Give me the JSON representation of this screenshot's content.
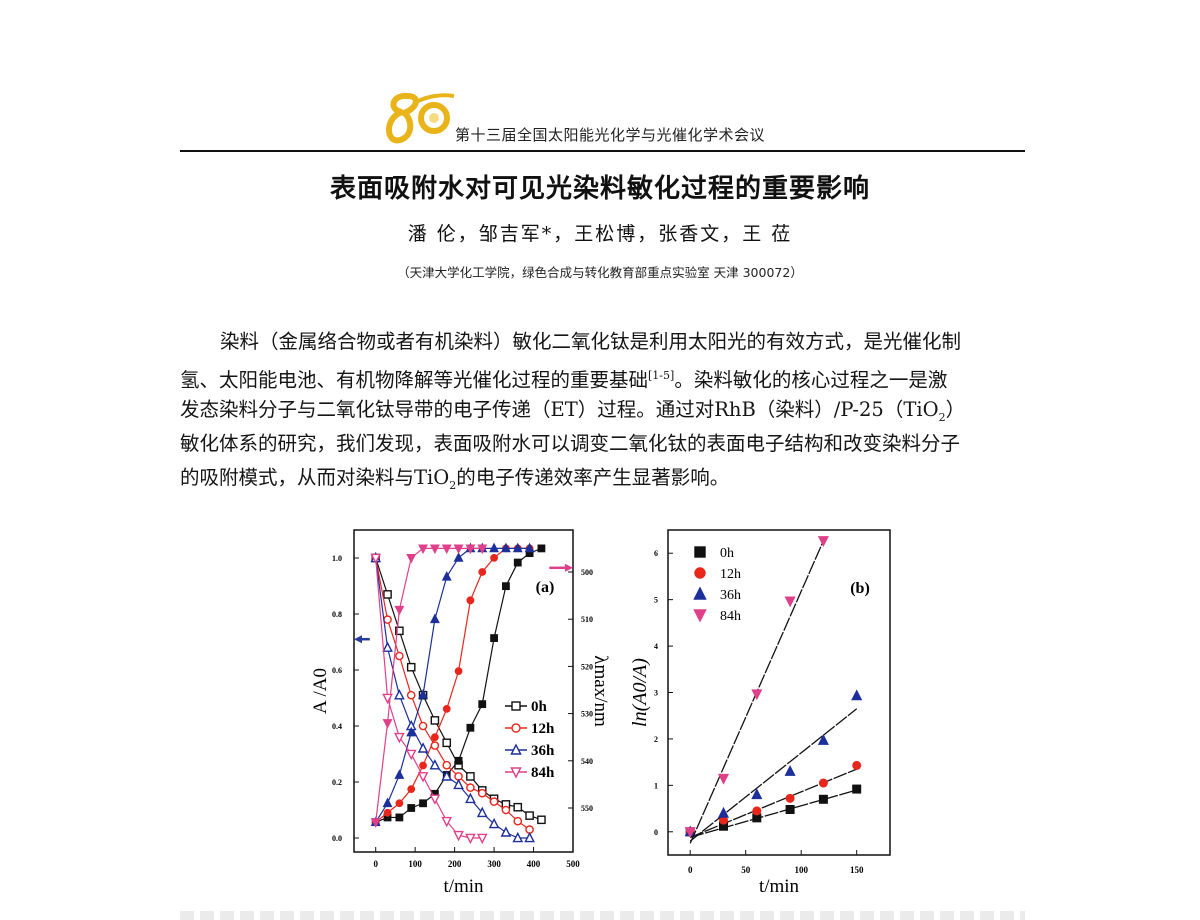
{
  "header": {
    "logo_text": "85",
    "conference": "第十三届全国太阳能光化学与光催化学术会议"
  },
  "title": "表面吸附水对可见光染料敏化过程的重要影响",
  "authors": "潘 伦，邹吉军*，王松博，张香文，王 莅",
  "affiliation": "（天津大学化工学院，绿色合成与转化教育部重点实验室 天津 300072）",
  "paragraph": [
    [
      {
        "t": "染料（金属络合物或者有机染料）敏化二氧化钛是利用太阳光的有效方式，是光催化制"
      }
    ],
    [
      {
        "t": "氢、太阳能电池、有机物降解等光催化过程的重要基础"
      },
      {
        "t": "[1-5]",
        "k": "sup"
      },
      {
        "t": "。染料敏化的核心过程之一是激"
      }
    ],
    [
      {
        "t": "发态染料分子与二氧化钛导带的电子传递（ET）过程。通过对RhB（染料）/P-25（TiO"
      },
      {
        "t": "2",
        "k": "sub"
      },
      {
        "t": "）"
      }
    ],
    [
      {
        "t": "敏化体系的研究，我们发现，表面吸附水可以调变二氧化钛的表面电子结构和改变染料分子"
      }
    ],
    [
      {
        "t": "的吸附模式，从而对染料与TiO"
      },
      {
        "t": "2",
        "k": "sub"
      },
      {
        "t": "的电子传递效率产生显著影响。"
      }
    ]
  ],
  "chart_data": [
    {
      "type": "line",
      "panel_label": "(a)",
      "xlabel": "t/min",
      "ylabel": "A /A0",
      "y2label": "λmax/nm",
      "xlim": [
        -55,
        500
      ],
      "ylim": [
        -0.05,
        1.1
      ],
      "y2lim": [
        500,
        550
      ],
      "y2_inverted": true,
      "xticks": [
        0,
        100,
        200,
        300,
        400,
        500
      ],
      "yticks": [
        "0.0",
        "0.2",
        "0.4",
        "0.6",
        "0.8",
        "1.0"
      ],
      "y2ticks": [
        500,
        510,
        520,
        530,
        540,
        550
      ],
      "legend_position": "right-middle",
      "arrows": [
        {
          "axis": "left",
          "y": 0.71,
          "color": "#2a3a9a"
        },
        {
          "axis": "right",
          "y": 0.965,
          "color": "#e0408a"
        }
      ],
      "series": [
        {
          "name": "0h",
          "color": "#111111",
          "marker": "square",
          "t": [
            0,
            30,
            60,
            90,
            120,
            150,
            180,
            210,
            240,
            270,
            300,
            330,
            360,
            390,
            420
          ],
          "A_A0": [
            1.0,
            0.87,
            0.74,
            0.61,
            0.51,
            0.42,
            0.34,
            0.26,
            0.22,
            0.17,
            0.14,
            0.12,
            0.11,
            0.08,
            0.065
          ],
          "lambda_max": [
            553,
            552,
            552,
            550,
            549,
            547,
            543,
            540,
            533,
            528,
            514,
            503,
            498,
            496,
            495
          ]
        },
        {
          "name": "12h",
          "color": "#e8261c",
          "marker": "circle",
          "t": [
            0,
            30,
            60,
            90,
            120,
            150,
            180,
            210,
            240,
            270,
            300,
            330,
            360,
            390
          ],
          "A_A0": [
            1.0,
            0.78,
            0.65,
            0.51,
            0.4,
            0.33,
            0.26,
            0.22,
            0.18,
            0.16,
            0.13,
            0.1,
            0.06,
            0.03
          ],
          "lambda_max": [
            553,
            551,
            549,
            546,
            541,
            535,
            529,
            521,
            506,
            500,
            497,
            495,
            495,
            495
          ]
        },
        {
          "name": "36h",
          "color": "#1c2f9a",
          "marker": "triangle-up",
          "t": [
            0,
            30,
            60,
            90,
            120,
            150,
            180,
            210,
            240,
            270,
            300,
            330,
            360,
            390
          ],
          "A_A0": [
            1.0,
            0.68,
            0.51,
            0.4,
            0.32,
            0.26,
            0.22,
            0.19,
            0.14,
            0.09,
            0.05,
            0.02,
            0.0,
            0.0
          ],
          "lambda_max": [
            553,
            549,
            543,
            534,
            526,
            510,
            501,
            497,
            495,
            495,
            495,
            495,
            495,
            495
          ]
        },
        {
          "name": "84h",
          "color": "#e0408a",
          "marker": "triangle-down",
          "t": [
            0,
            30,
            60,
            90,
            120,
            150,
            180,
            210,
            240,
            270
          ],
          "A_A0": [
            1.0,
            0.5,
            0.36,
            0.3,
            0.22,
            0.14,
            0.06,
            0.01,
            0.0,
            0.0
          ],
          "lambda_max": [
            553,
            532,
            508,
            497,
            495,
            495,
            495,
            495,
            495,
            495
          ]
        }
      ]
    },
    {
      "type": "scatter",
      "panel_label": "(b)",
      "xlabel": "t/min",
      "ylabel": "ln(A0/A)",
      "xlim": [
        -20,
        180
      ],
      "ylim": [
        -0.5,
        6.5
      ],
      "xticks": [
        0,
        50,
        100,
        150
      ],
      "yticks": [
        0,
        1,
        2,
        3,
        4,
        5,
        6
      ],
      "legend_position": "top-left",
      "series": [
        {
          "name": "0h",
          "color": "#111111",
          "marker": "square",
          "x": [
            0,
            30,
            60,
            90,
            120,
            150
          ],
          "y": [
            0,
            0.12,
            0.3,
            0.48,
            0.7,
            0.92
          ],
          "fit": {
            "slope": 0.0068,
            "intercept": -0.12,
            "x_end": 150
          }
        },
        {
          "name": "12h",
          "color": "#e8261c",
          "marker": "circle",
          "x": [
            0,
            30,
            60,
            90,
            120,
            150
          ],
          "y": [
            0,
            0.25,
            0.45,
            0.72,
            1.05,
            1.43
          ],
          "fit": {
            "slope": 0.0098,
            "intercept": -0.12,
            "x_end": 150
          }
        },
        {
          "name": "36h",
          "color": "#1c2f9a",
          "marker": "triangle-up",
          "x": [
            0,
            30,
            60,
            90,
            120,
            150
          ],
          "y": [
            0,
            0.4,
            0.8,
            1.3,
            1.97,
            2.93
          ],
          "fit": {
            "slope": 0.019,
            "intercept": -0.2,
            "x_end": 150
          }
        },
        {
          "name": "84h",
          "color": "#e0408a",
          "marker": "triangle-down",
          "x": [
            0,
            30,
            60,
            90,
            120
          ],
          "y": [
            0,
            1.15,
            2.97,
            4.97,
            6.27
          ],
          "fit": {
            "slope": 0.0543,
            "intercept": -0.25,
            "x_end": 120
          }
        }
      ]
    }
  ]
}
